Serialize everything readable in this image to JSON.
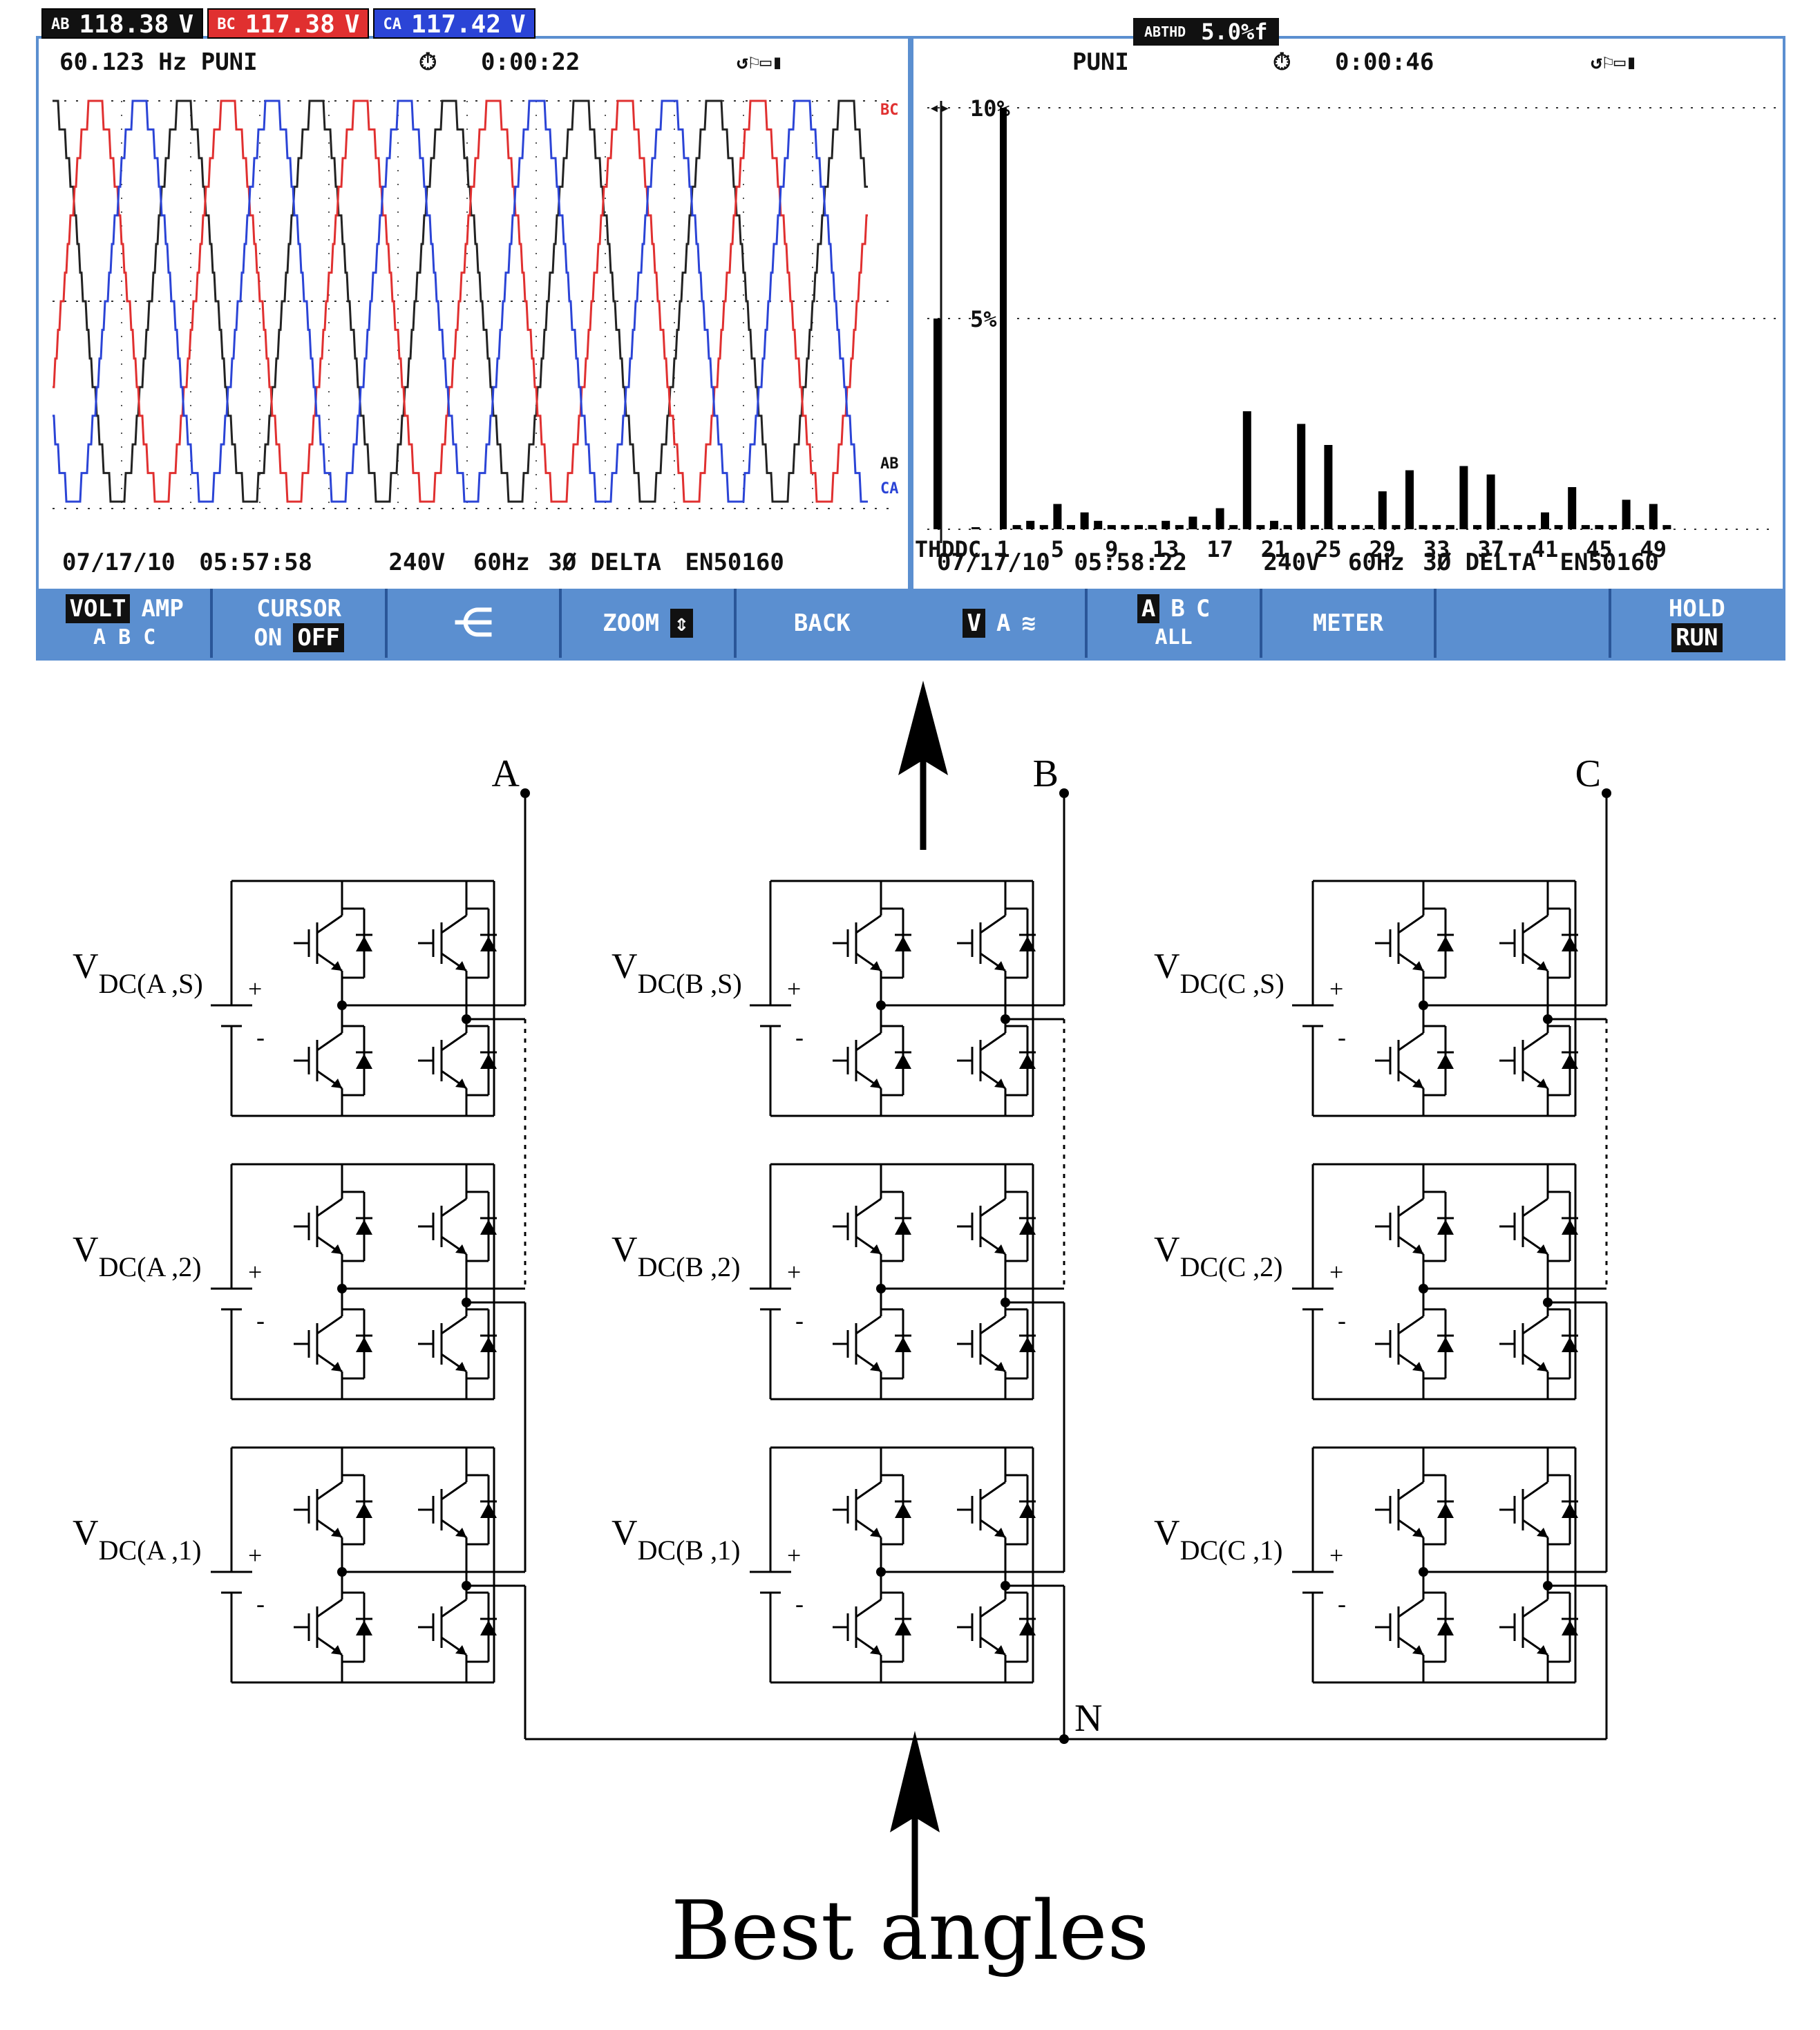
{
  "left_screen": {
    "readings": [
      {
        "tag": "AB",
        "value": "118.38",
        "unit": "V",
        "color": "#111111"
      },
      {
        "tag": "BC",
        "value": "117.38",
        "unit": "V",
        "color": "#e03030"
      },
      {
        "tag": "CA",
        "value": "117.42",
        "unit": "V",
        "color": "#2b44d6"
      }
    ],
    "frequency": "60.123 Hz",
    "mode": "PUNI",
    "timer": "0:00:22",
    "trace_labels": {
      "bc": "BC",
      "ab": "AB",
      "ca": "CA"
    },
    "footer": {
      "date": "07/17/10",
      "time": "05:57:58",
      "voltage": "240V",
      "freq": "60Hz",
      "config": "3Ø DELTA",
      "standard": "EN50160"
    },
    "softkeys": {
      "volt": "VOLT",
      "amp": "AMP",
      "abc": "A B C",
      "cursor": "CURSOR",
      "on": "ON",
      "off": "OFF",
      "zoom": "ZOOM",
      "back": "BACK"
    }
  },
  "right_screen": {
    "thd_tag": "ABTHD",
    "thd_value": "5.0%f",
    "mode": "PUNI",
    "timer": "0:00:46",
    "y_ticks": [
      "10%",
      "5%"
    ],
    "footer": {
      "date": "07/17/10",
      "time": "05:58:22",
      "voltage": "240V",
      "freq": "60Hz",
      "config": "3Ø DELTA",
      "standard": "EN50160"
    },
    "softkeys": {
      "v": "V",
      "a": "A",
      "a2": "A",
      "b": "B",
      "c": "C",
      "all": "ALL",
      "meter": "METER",
      "hold": "HOLD",
      "run": "RUN"
    }
  },
  "chart_data": {
    "type": "bar",
    "categories": [
      "THD",
      "DC",
      "1",
      "2",
      "3",
      "4",
      "5",
      "6",
      "7",
      "8",
      "9",
      "10",
      "11",
      "12",
      "13",
      "14",
      "15",
      "16",
      "17",
      "18",
      "19",
      "20",
      "21",
      "22",
      "23",
      "24",
      "25",
      "26",
      "27",
      "28",
      "29",
      "30",
      "31",
      "32",
      "33",
      "34",
      "35",
      "36",
      "37",
      "38",
      "39",
      "40",
      "41",
      "42",
      "43",
      "44",
      "45",
      "46",
      "47",
      "48",
      "49",
      "50"
    ],
    "x_tick_labels": [
      "THDDC",
      "1",
      "5",
      "9",
      "13",
      "17",
      "21",
      "25",
      "29",
      "33",
      "37",
      "41",
      "45",
      "49"
    ],
    "values": [
      5.0,
      0.0,
      10.0,
      0.1,
      0.2,
      0.1,
      0.6,
      0.1,
      0.4,
      0.2,
      0.1,
      0.1,
      0.1,
      0.1,
      0.2,
      0.1,
      0.3,
      0.1,
      0.5,
      0.1,
      2.8,
      0.1,
      0.2,
      0.1,
      2.5,
      0.1,
      2.0,
      0.1,
      0.1,
      0.1,
      0.9,
      0.1,
      1.4,
      0.1,
      0.1,
      0.1,
      1.5,
      0.1,
      1.3,
      0.1,
      0.1,
      0.1,
      0.4,
      0.1,
      1.0,
      0.1,
      0.1,
      0.1,
      0.7,
      0.1,
      0.6,
      0.1
    ],
    "ylim": [
      0,
      10
    ],
    "grid": true
  },
  "circuit": {
    "phases": [
      {
        "label": "A",
        "sources": [
          "V",
          "DC(A ,S)",
          "V",
          "DC(A ,2)",
          "V",
          "DC(A ,1)"
        ]
      },
      {
        "label": "B"
      },
      {
        "label": "C"
      }
    ],
    "source_labels": {
      "A": [
        "DC(A ,S)",
        "DC(A ,2)",
        "DC(A ,1)"
      ],
      "B": [
        "DC(B ,S)",
        "DC(B ,2)",
        "DC(B ,1)"
      ],
      "C": [
        "DC(C ,S)",
        "DC(C ,2)",
        "DC(C ,1)"
      ]
    },
    "v_prefix": "V",
    "plus": "+",
    "minus": "-",
    "neutral": "N"
  },
  "caption": "Best angles"
}
